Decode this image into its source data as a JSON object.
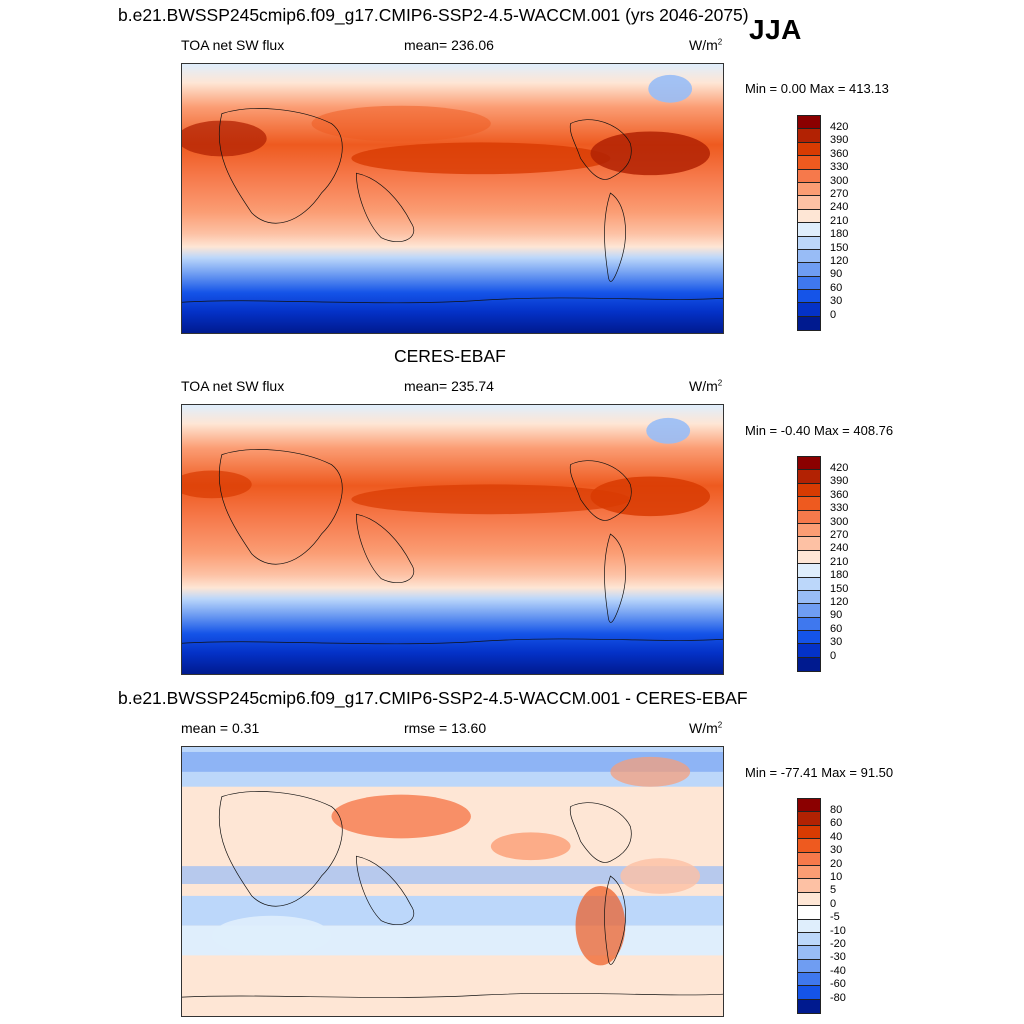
{
  "panels": [
    {
      "title": "b.e21.BWSSP245cmip6.f09_g17.CMIP6-SSP2-4.5-WACCM.001 (yrs 2046-2075)",
      "season": "JJA",
      "left_label": "TOA net SW flux",
      "center_label": "mean= 236.06",
      "units_base": "W/m",
      "units_exp": "2",
      "minmax": "Min =   0.00 Max = 413.13",
      "colorbar_ticks": [
        "420",
        "390",
        "360",
        "330",
        "300",
        "270",
        "240",
        "210",
        "180",
        "150",
        "120",
        "90",
        "60",
        "30",
        "0"
      ],
      "colorbar_colors": [
        "#8b0000",
        "#b22203",
        "#d83b02",
        "#ee5a1f",
        "#f6794b",
        "#fb9d74",
        "#fdc1a4",
        "#fee6d5",
        "#dfeefc",
        "#bcd7fa",
        "#98bcf6",
        "#6f9df2",
        "#3f78ee",
        "#1554e8",
        "#0432c8",
        "#001a8f"
      ]
    },
    {
      "title": "CERES-EBAF",
      "left_label": "TOA net SW flux",
      "center_label": "mean= 235.74",
      "units_base": "W/m",
      "units_exp": "2",
      "minmax": "Min =  -0.40 Max = 408.76",
      "colorbar_ticks": [
        "420",
        "390",
        "360",
        "330",
        "300",
        "270",
        "240",
        "210",
        "180",
        "150",
        "120",
        "90",
        "60",
        "30",
        "0"
      ],
      "colorbar_colors": [
        "#8b0000",
        "#b22203",
        "#d83b02",
        "#ee5a1f",
        "#f6794b",
        "#fb9d74",
        "#fdc1a4",
        "#fee6d5",
        "#dfeefc",
        "#bcd7fa",
        "#98bcf6",
        "#6f9df2",
        "#3f78ee",
        "#1554e8",
        "#0432c8",
        "#001a8f"
      ]
    },
    {
      "title": "b.e21.BWSSP245cmip6.f09_g17.CMIP6-SSP2-4.5-WACCM.001 - CERES-EBAF",
      "left_label": "mean =   0.31",
      "center_label": "rmse =  13.60",
      "units_base": "W/m",
      "units_exp": "2",
      "minmax": "Min = -77.41 Max =  91.50",
      "colorbar_ticks": [
        "80",
        "60",
        "40",
        "30",
        "20",
        "10",
        "5",
        "0",
        "-5",
        "-10",
        "-20",
        "-30",
        "-40",
        "-60",
        "-80"
      ],
      "colorbar_colors": [
        "#8b0000",
        "#b22203",
        "#d83b02",
        "#ee5a1f",
        "#f6794b",
        "#fb9d74",
        "#fdc1a4",
        "#fee6d5",
        "#ffffff",
        "#dfeefc",
        "#bcd7fa",
        "#98bcf6",
        "#6f9df2",
        "#3f78ee",
        "#1554e8",
        "#001a8f"
      ]
    }
  ]
}
